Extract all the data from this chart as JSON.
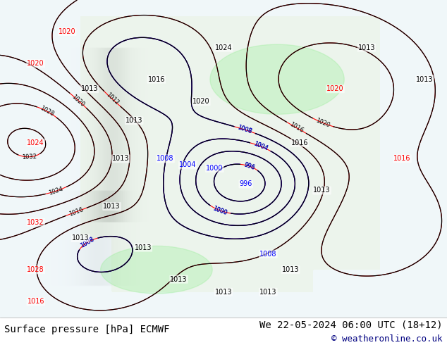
{
  "fig_width": 6.34,
  "fig_height": 4.9,
  "dpi": 100,
  "background_color": "#e8e8e8",
  "map_background_color": "#f0f0f0",
  "bottom_label_left": "Surface pressure [hPa] ECMWF",
  "bottom_label_right": "We 22-05-2024 06:00 UTC (18+12)",
  "copyright_text": "© weatheronline.co.uk",
  "bottom_bar_color": "#ffffff",
  "bottom_text_color": "#000000",
  "copyright_color": "#000080",
  "label_fontsize": 10,
  "copyright_fontsize": 9,
  "map_color_land": "#c8e6c9",
  "map_color_sea": "#e0f0ff",
  "contour_red_color": "#ff0000",
  "contour_blue_color": "#0000ff",
  "contour_black_color": "#000000",
  "contour_linewidth": 1.0,
  "label_color": "#000000"
}
